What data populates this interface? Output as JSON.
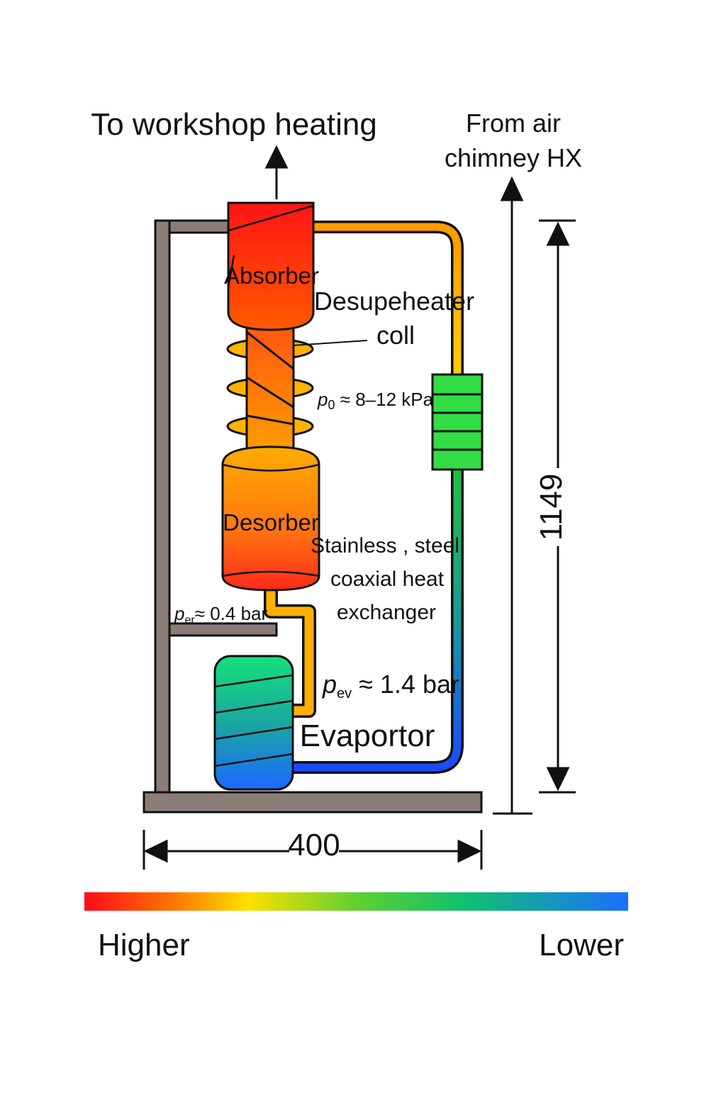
{
  "labels": {
    "to_workshop": "To workshop heating",
    "from_air_line1": "From air",
    "from_air_line2": "chimney HX",
    "absorber": "Absorber",
    "desuperheater_line1": "Desupeheater",
    "desuperheater_line2": "coll",
    "p0_symbol": "p",
    "p0_sub": "0",
    "p0_value": " ≈ 8–12 kPa",
    "desorber": "Desorber",
    "hx_line1": "Stainless , steel",
    "hx_line2": "coaxial heat",
    "hx_line3": "exchanger",
    "per_symbol": "p",
    "per_sub": "er",
    "per_value": "≈ 0.4 bar",
    "pev_symbol": "p",
    "pev_sub": "ev",
    "pev_value": " ≈ 1.4 bar",
    "evaporator": "Evaportor"
  },
  "dimensions": {
    "height": "1149",
    "width": "400"
  },
  "legend": {
    "higher": "Higher",
    "lower": "Lower"
  },
  "colors": {
    "frame": "#8a7d78",
    "hot": "#ff1a1a",
    "warm": "#ff8a00",
    "medium": "#ffd200",
    "green": "#22cc44",
    "cold": "#1a55ff"
  }
}
